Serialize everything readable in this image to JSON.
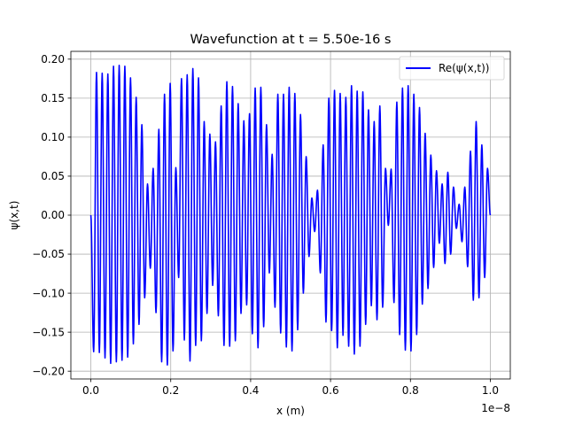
{
  "chart_data": {
    "type": "line",
    "title": "Wavefunction at t = 5.50e-16 s",
    "xlabel": "x (m)",
    "ylabel": "ψ(x,t)",
    "x_offset_label": "1e−8",
    "xlim": [
      -0.05,
      1.05
    ],
    "ylim": [
      -0.21,
      0.21
    ],
    "x_ticks": [
      0.0,
      0.2,
      0.4,
      0.6,
      0.8,
      1.0
    ],
    "x_tick_labels": [
      "0.0",
      "0.2",
      "0.4",
      "0.6",
      "0.8",
      "1.0"
    ],
    "y_ticks": [
      -0.2,
      -0.15,
      -0.1,
      -0.05,
      0.0,
      0.05,
      0.1,
      0.15,
      0.2
    ],
    "y_tick_labels": [
      "−0.20",
      "−0.15",
      "−0.10",
      "−0.05",
      "0.00",
      "0.05",
      "0.10",
      "0.15",
      "0.20"
    ],
    "grid": true,
    "legend_position": "top-right",
    "series": [
      {
        "name": "Re(ψ(x,t))",
        "color": "#0000ff",
        "x_range": [
          0.0,
          1.0
        ],
        "cycles": 70,
        "extrema": [
          0.0,
          -0.175,
          0.183,
          -0.176,
          0.182,
          -0.183,
          0.181,
          -0.19,
          0.191,
          -0.188,
          0.192,
          -0.186,
          0.191,
          -0.182,
          0.176,
          -0.165,
          0.151,
          -0.14,
          0.116,
          -0.106,
          0.04,
          -0.068,
          0.06,
          -0.125,
          0.11,
          -0.188,
          0.155,
          -0.192,
          0.169,
          -0.174,
          0.061,
          -0.08,
          0.175,
          -0.16,
          0.18,
          -0.187,
          0.188,
          -0.167,
          0.176,
          -0.161,
          0.12,
          -0.126,
          0.104,
          -0.09,
          0.094,
          -0.129,
          0.14,
          -0.167,
          0.171,
          -0.168,
          0.165,
          -0.161,
          0.143,
          -0.126,
          0.121,
          -0.115,
          0.13,
          -0.152,
          0.163,
          -0.17,
          0.164,
          -0.143,
          0.116,
          -0.074,
          0.078,
          -0.118,
          0.155,
          -0.151,
          0.155,
          -0.169,
          0.164,
          -0.174,
          0.156,
          -0.147,
          0.129,
          -0.1,
          0.075,
          -0.053,
          0.022,
          -0.021,
          0.032,
          -0.074,
          0.09,
          -0.137,
          0.15,
          -0.148,
          0.16,
          -0.17,
          0.156,
          -0.154,
          0.151,
          -0.168,
          0.166,
          -0.178,
          0.159,
          -0.168,
          0.158,
          -0.14,
          0.135,
          -0.116,
          0.12,
          -0.134,
          0.14,
          -0.118,
          0.06,
          -0.013,
          0.059,
          -0.112,
          0.145,
          -0.153,
          0.163,
          -0.173,
          0.166,
          -0.174,
          0.155,
          -0.153,
          0.138,
          -0.114,
          0.105,
          -0.094,
          0.077,
          -0.067,
          0.057,
          -0.036,
          0.04,
          -0.062,
          0.055,
          -0.05,
          0.036,
          -0.017,
          0.014,
          -0.034,
          0.036,
          -0.066,
          0.082,
          -0.109,
          0.12,
          -0.106,
          0.09,
          -0.08,
          0.06,
          0.0
        ]
      }
    ]
  }
}
